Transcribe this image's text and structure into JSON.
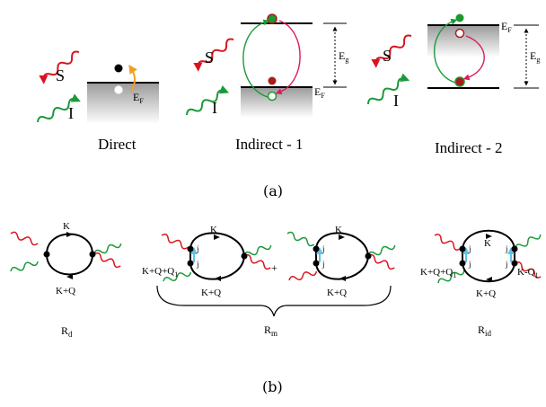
{
  "panel_a": {
    "label": "(a)",
    "direct": {
      "caption": "Direct",
      "scattered": "S",
      "incident": "I",
      "fermi": "E",
      "fermi_sub": "F"
    },
    "indirect1": {
      "caption": "Indirect - 1",
      "scattered": "S",
      "incident": "I",
      "gap": "E",
      "gap_sub": "g",
      "fermi": "E",
      "fermi_sub": "F"
    },
    "indirect2": {
      "caption": "Indirect - 2",
      "scattered": "S",
      "incident": "I",
      "gap": "E",
      "gap_sub": "g",
      "fermi": "E",
      "fermi_sub": "F"
    }
  },
  "panel_b": {
    "label": "(b)",
    "rd": {
      "label": "R",
      "sub": "d",
      "top": "K",
      "bottom": "K+Q"
    },
    "rm": {
      "label": "R",
      "sub": "m",
      "plus": "+",
      "left": {
        "top": "K",
        "bottom": "K+Q",
        "side": "K+Q+Q",
        "side_sub": "1",
        "j_top": "j",
        "j_bot": "j"
      },
      "right": {
        "top": "K",
        "bottom": "K+Q",
        "j_top": "j",
        "j_bot": "j"
      }
    },
    "rid": {
      "label": "R",
      "sub": "id",
      "top": "K",
      "bottom": "K+Q",
      "left_side": "K+Q+Q",
      "left_sub": "1",
      "right_side": "K-Q",
      "right_sub": "1",
      "j_lt": "j",
      "j_lb": "j",
      "j_rt": "j",
      "j_rb": "j"
    }
  },
  "colors": {
    "scattered": "#d9141e",
    "incident": "#1a9a3a",
    "electron_green": "#1b9a2d",
    "hole_red": "#a81c1c",
    "orange": "#f0a020",
    "pink": "#d81b60",
    "cyan": "#5ec4e8"
  }
}
